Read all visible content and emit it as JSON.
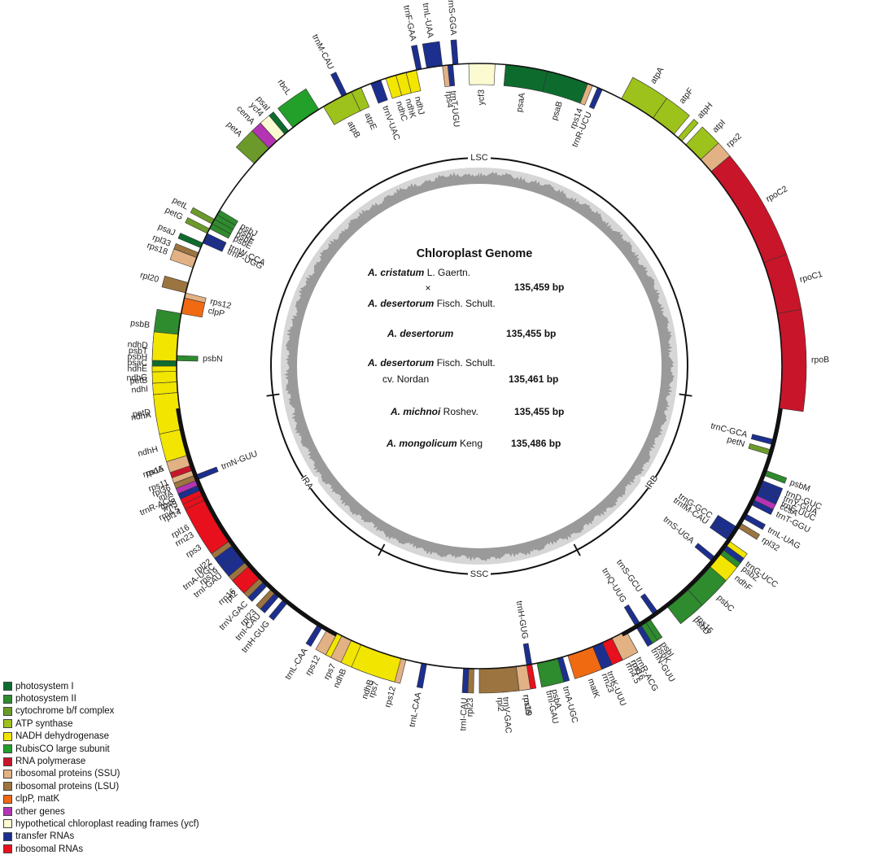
{
  "diagram": {
    "title": "Chloroplast Genome",
    "species": [
      {
        "line1_italic": "A. cristatum",
        "line1_rest": " L. Gaertn.",
        "cross": "×",
        "line2_italic": "A. desertorum",
        "line2_rest": " Fisch. Schult.",
        "size": "135,459 bp"
      },
      {
        "italic": "A. desertorum",
        "rest": "",
        "size": "135,455 bp"
      },
      {
        "italic": "A. desertorum",
        "rest": " Fisch. Schult.",
        "line2": "cv. Nordan",
        "size": "135,461 bp"
      },
      {
        "italic": "A. michnoi",
        "rest": " Roshev.",
        "size": "135,455 bp"
      },
      {
        "italic": "A. mongolicum",
        "rest": " Keng",
        "size": "135,486 bp"
      }
    ],
    "regions": [
      {
        "label": "LSC",
        "angle": 0
      },
      {
        "label": "IRB",
        "angle": 124
      },
      {
        "label": "SSC",
        "angle": 180
      },
      {
        "label": "IRA",
        "angle": 236
      }
    ],
    "boundaries": [
      98,
      152,
      208,
      262
    ],
    "genes": [
      {
        "name": "trnS-GGA",
        "start": -5,
        "end": -4,
        "group": "trna",
        "side": "out"
      },
      {
        "name": "trnL-UAA",
        "start": -10,
        "end": -7,
        "group": "trna",
        "side": "out"
      },
      {
        "name": "trnF-GAA",
        "start": -12,
        "end": -11,
        "group": "trna",
        "side": "out"
      },
      {
        "name": "trnM-CAU",
        "start": -27,
        "end": -26,
        "group": "trna",
        "side": "out"
      },
      {
        "name": "rbcL",
        "start": -38,
        "end": -32,
        "group": "rubisco",
        "side": "out"
      },
      {
        "name": "psaI",
        "start": -40,
        "end": -39,
        "group": "ps1",
        "side": "out"
      },
      {
        "name": "ycf4",
        "start": -42,
        "end": -40,
        "group": "ycf",
        "side": "out"
      },
      {
        "name": "cemA",
        "start": -44,
        "end": -42,
        "group": "other",
        "side": "out"
      },
      {
        "name": "petA",
        "start": -48,
        "end": -44,
        "group": "cyt",
        "side": "out"
      },
      {
        "name": "petL",
        "start": -62,
        "end": -61,
        "group": "cyt",
        "side": "out"
      },
      {
        "name": "petG",
        "start": -64,
        "end": -63,
        "group": "cyt",
        "side": "out"
      },
      {
        "name": "psaJ",
        "start": -67,
        "end": -66,
        "group": "ps1",
        "side": "out"
      },
      {
        "name": "rpl33",
        "start": -69,
        "end": -68,
        "group": "lsu",
        "side": "out"
      },
      {
        "name": "rps18",
        "start": -71,
        "end": -69,
        "group": "ssu",
        "side": "out"
      },
      {
        "name": "rpl20",
        "start": -76,
        "end": -74,
        "group": "lsu",
        "side": "out"
      },
      {
        "name": "psbB",
        "start": -86,
        "end": -80,
        "group": "ps2",
        "side": "out"
      },
      {
        "name": "psbT",
        "start": -88,
        "end": -87,
        "group": "ps2",
        "side": "out"
      },
      {
        "name": "psbH",
        "start": -89,
        "end": -88,
        "group": "ps2",
        "side": "out"
      },
      {
        "name": "petB",
        "start": -95,
        "end": -90,
        "group": "cyt",
        "side": "out"
      },
      {
        "name": "petD",
        "start": -100,
        "end": -96,
        "group": "cyt",
        "side": "out"
      },
      {
        "name": "rpoA",
        "start": -110,
        "end": -106,
        "group": "rnap",
        "side": "out"
      },
      {
        "name": "rps11",
        "start": -111,
        "end": -110,
        "group": "ssu",
        "side": "out"
      },
      {
        "name": "rpl36",
        "start": -112,
        "end": -111,
        "group": "lsu",
        "side": "out"
      },
      {
        "name": "infA",
        "start": -113,
        "end": -112,
        "group": "other",
        "side": "out"
      },
      {
        "name": "rps8",
        "start": -115,
        "end": -113,
        "group": "ssu",
        "side": "out"
      },
      {
        "name": "rpl14",
        "start": -117,
        "end": -115,
        "group": "lsu",
        "side": "out"
      },
      {
        "name": "rpl16",
        "start": -121,
        "end": -117,
        "group": "lsu",
        "side": "out"
      },
      {
        "name": "rps3",
        "start": -125,
        "end": -121,
        "group": "ssu",
        "side": "out"
      },
      {
        "name": "rpl22",
        "start": -127,
        "end": -125,
        "group": "lsu",
        "side": "out"
      },
      {
        "name": "rps19",
        "start": -129,
        "end": -127,
        "group": "ssu",
        "side": "out"
      },
      {
        "name": "rpl2",
        "start": -136,
        "end": -130,
        "group": "lsu",
        "side": "out"
      },
      {
        "name": "rpl23",
        "start": -138,
        "end": -137,
        "group": "lsu",
        "side": "out"
      },
      {
        "name": "trnI-CAU",
        "start": -139,
        "end": -138,
        "group": "trna",
        "side": "out"
      },
      {
        "name": "trnH-GUG",
        "start": -141,
        "end": -140,
        "group": "trna",
        "side": "out"
      },
      {
        "name": "trnL-CAA",
        "start": -149,
        "end": -148,
        "group": "trna",
        "side": "out"
      },
      {
        "name": "ndhB",
        "start": -160,
        "end": -152,
        "group": "ndh",
        "side": "out"
      },
      {
        "name": "rps7",
        "start": -163,
        "end": -161,
        "group": "ssu",
        "side": "out"
      },
      {
        "name": "rps12",
        "start": -166,
        "end": -164,
        "group": "ssu",
        "side": "out"
      },
      {
        "name": "trnV-GAC",
        "start": -185,
        "end": -184,
        "group": "trna",
        "side": "out"
      },
      {
        "name": "rrn16",
        "start": -190,
        "end": -186,
        "group": "rrna",
        "side": "out"
      },
      {
        "name": "trnI-GAU",
        "start": -193,
        "end": -191,
        "group": "trna",
        "side": "out"
      },
      {
        "name": "trnA-UGC",
        "start": -196,
        "end": -194,
        "group": "trna",
        "side": "out"
      },
      {
        "name": "rrn23",
        "start": -206,
        "end": -198,
        "group": "rrna",
        "side": "out"
      },
      {
        "name": "rrn4.5",
        "start": -207,
        "end": -206,
        "group": "rrna",
        "side": "out"
      },
      {
        "name": "rrn5",
        "start": -208,
        "end": -207,
        "group": "rrna",
        "side": "out"
      },
      {
        "name": "trnR-ACG",
        "start": -209,
        "end": -208,
        "group": "trna",
        "side": "out"
      },
      {
        "name": "trnN-GUU",
        "start": -212,
        "end": -211,
        "group": "trna",
        "side": "out"
      },
      {
        "name": "rps15",
        "start": -222,
        "end": -220,
        "group": "ssu",
        "side": "out"
      },
      {
        "name": "ndhF",
        "start": -235,
        "end": -226,
        "group": "ndh",
        "side": "out"
      },
      {
        "name": "rpl32",
        "start": -239,
        "end": -238,
        "group": "lsu",
        "side": "out"
      },
      {
        "name": "trnL-UAG",
        "start": -241,
        "end": -240,
        "group": "trna",
        "side": "out"
      },
      {
        "name": "ccsA",
        "start": -247,
        "end": -243,
        "group": "other",
        "side": "out"
      },
      {
        "name": "psaA",
        "start": 5,
        "end": 13,
        "group": "ps1",
        "side": "in"
      },
      {
        "name": "psaB",
        "start": 13,
        "end": 21,
        "group": "ps1",
        "side": "in"
      },
      {
        "name": "rps14",
        "start": 21,
        "end": 22,
        "group": "ssu",
        "side": "in"
      },
      {
        "name": "trnR-UCU",
        "start": 23,
        "end": 24,
        "group": "trna",
        "side": "in"
      },
      {
        "name": "ycf3",
        "start": -2,
        "end": 3,
        "group": "ycf",
        "side": "in"
      },
      {
        "name": "trnT-UGU",
        "start": -6,
        "end": -5,
        "group": "trna",
        "side": "in"
      },
      {
        "name": "rps4",
        "start": -7,
        "end": -6,
        "group": "ssu",
        "side": "in"
      },
      {
        "name": "ndhJ",
        "start": -14,
        "end": -12,
        "group": "ndh",
        "side": "in"
      },
      {
        "name": "ndhK",
        "start": -16,
        "end": -14,
        "group": "ndh",
        "side": "in"
      },
      {
        "name": "ndhC",
        "start": -18,
        "end": -16,
        "group": "ndh",
        "side": "in"
      },
      {
        "name": "trnV-UAC",
        "start": -21,
        "end": -19,
        "group": "trna",
        "side": "in"
      },
      {
        "name": "atpE",
        "start": -25,
        "end": -23,
        "group": "atp",
        "side": "in"
      },
      {
        "name": "atpB",
        "start": -31,
        "end": -25,
        "group": "atp",
        "side": "in"
      },
      {
        "name": "psbJ",
        "start": -60,
        "end": -59,
        "group": "ps2",
        "side": "in"
      },
      {
        "name": "psbL",
        "start": -61,
        "end": -60,
        "group": "ps2",
        "side": "in"
      },
      {
        "name": "psbF",
        "start": -62,
        "end": -61,
        "group": "ps2",
        "side": "in"
      },
      {
        "name": "psbE",
        "start": -63,
        "end": -62,
        "group": "ps2",
        "side": "in"
      },
      {
        "name": "trnW-CCA",
        "start": -65,
        "end": -64,
        "group": "trna",
        "side": "in"
      },
      {
        "name": "trnP-UGG",
        "start": -66,
        "end": -65,
        "group": "trna",
        "side": "in"
      },
      {
        "name": "rps12",
        "start": -77,
        "end": -76,
        "group": "ssu",
        "side": "in"
      },
      {
        "name": "clpP",
        "start": -80,
        "end": -77,
        "group": "clp",
        "side": "in"
      },
      {
        "name": "psbN",
        "start": -89,
        "end": -88,
        "group": "ps2",
        "side": "in"
      },
      {
        "name": "atpA",
        "start": 28,
        "end": 35,
        "group": "atp",
        "side": "out"
      },
      {
        "name": "atpF",
        "start": 35,
        "end": 40,
        "group": "atp",
        "side": "out"
      },
      {
        "name": "atpH",
        "start": 41,
        "end": 42,
        "group": "atp",
        "side": "out"
      },
      {
        "name": "atpI",
        "start": 43,
        "end": 47,
        "group": "atp",
        "side": "out"
      },
      {
        "name": "rps2",
        "start": 47,
        "end": 50,
        "group": "ssu",
        "side": "out"
      },
      {
        "name": "rpoC2",
        "start": 50,
        "end": 70,
        "group": "rnap",
        "side": "out"
      },
      {
        "name": "rpoC1",
        "start": 70,
        "end": 80,
        "group": "rnap",
        "side": "out"
      },
      {
        "name": "rpoB",
        "start": 80,
        "end": 98,
        "group": "rnap",
        "side": "out"
      },
      {
        "name": "psbM",
        "start": 110,
        "end": 111,
        "group": "ps2",
        "side": "out"
      },
      {
        "name": "trnD-GUC",
        "start": 112,
        "end": 113,
        "group": "trna",
        "side": "out"
      },
      {
        "name": "trnY-GUA",
        "start": 113,
        "end": 114,
        "group": "trna",
        "side": "out"
      },
      {
        "name": "trnE-UUC",
        "start": 114,
        "end": 115,
        "group": "trna",
        "side": "out"
      },
      {
        "name": "trnT-GGU",
        "start": 116,
        "end": 117,
        "group": "trna",
        "side": "out"
      },
      {
        "name": "trnG-UCC",
        "start": 126,
        "end": 127,
        "group": "trna",
        "side": "out"
      },
      {
        "name": "psbZ",
        "start": 127,
        "end": 128,
        "group": "ps2",
        "side": "out"
      },
      {
        "name": "psbC",
        "start": 131,
        "end": 137,
        "group": "ps2",
        "side": "out"
      },
      {
        "name": "psbD",
        "start": 137,
        "end": 142,
        "group": "ps2",
        "side": "out"
      },
      {
        "name": "psbI",
        "start": 146,
        "end": 147,
        "group": "ps2",
        "side": "out"
      },
      {
        "name": "psbK",
        "start": 147,
        "end": 148,
        "group": "ps2",
        "side": "out"
      },
      {
        "name": "rps16",
        "start": 151,
        "end": 154,
        "group": "ssu",
        "side": "out"
      },
      {
        "name": "trnK-UUU",
        "start": 156,
        "end": 158,
        "group": "trna",
        "side": "out"
      },
      {
        "name": "matK",
        "start": 158,
        "end": 163,
        "group": "clp",
        "side": "out"
      },
      {
        "name": "psbA",
        "start": 165,
        "end": 169,
        "group": "ps2",
        "side": "out"
      },
      {
        "name": "rps19",
        "start": 171,
        "end": 173,
        "group": "ssu",
        "side": "out"
      },
      {
        "name": "rpl2",
        "start": 173,
        "end": 180,
        "group": "lsu",
        "side": "out"
      },
      {
        "name": "rpl23",
        "start": 181,
        "end": 182,
        "group": "lsu",
        "side": "out"
      },
      {
        "name": "trnI-CAU",
        "start": 182,
        "end": 183,
        "group": "trna",
        "side": "out"
      },
      {
        "name": "trnL-CAA",
        "start": 190,
        "end": 191,
        "group": "trna",
        "side": "out"
      },
      {
        "name": "ndhB",
        "start": 195,
        "end": 203,
        "group": "ndh",
        "side": "out"
      },
      {
        "name": "rps7",
        "start": 205,
        "end": 207,
        "group": "ssu",
        "side": "out"
      },
      {
        "name": "rps12",
        "start": 208,
        "end": 210,
        "group": "ssu",
        "side": "out"
      },
      {
        "name": "trnV-GAC",
        "start": 224,
        "end": 225,
        "group": "trna",
        "side": "out"
      },
      {
        "name": "rrn16",
        "start": 226,
        "end": 229,
        "group": "rrna",
        "side": "out"
      },
      {
        "name": "trnI-GAU",
        "start": 230,
        "end": 232,
        "group": "trna",
        "side": "out"
      },
      {
        "name": "trnA-UGC",
        "start": 232,
        "end": 234,
        "group": "trna",
        "side": "out"
      },
      {
        "name": "rrn23",
        "start": 235,
        "end": 244,
        "group": "rrna",
        "side": "out"
      },
      {
        "name": "rrn4.5",
        "start": 244,
        "end": 245,
        "group": "rrna",
        "side": "out"
      },
      {
        "name": "rrn5",
        "start": 245,
        "end": 246,
        "group": "rrna",
        "side": "out"
      },
      {
        "name": "trnR-ACG",
        "start": 246,
        "end": 247,
        "group": "trna",
        "side": "out"
      },
      {
        "name": "trnN-GUU",
        "start": 248,
        "end": 249,
        "group": "trna",
        "side": "in"
      },
      {
        "name": "rps15",
        "start": 251,
        "end": 253,
        "group": "ssu",
        "side": "out"
      },
      {
        "name": "ndhH",
        "start": 253,
        "end": 258,
        "group": "ndh",
        "side": "out"
      },
      {
        "name": "ndhA",
        "start": 258,
        "end": 265,
        "group": "ndh",
        "side": "out"
      },
      {
        "name": "ndhI",
        "start": 265,
        "end": 267,
        "group": "ndh",
        "side": "out"
      },
      {
        "name": "ndhG",
        "start": 267,
        "end": 269,
        "group": "ndh",
        "side": "out"
      },
      {
        "name": "ndhE",
        "start": 269,
        "end": 270,
        "group": "ndh",
        "side": "out"
      },
      {
        "name": "psaC",
        "start": 270,
        "end": 271,
        "group": "ps1",
        "side": "out"
      },
      {
        "name": "ndhD",
        "start": 271,
        "end": 276,
        "group": "ndh",
        "side": "out"
      },
      {
        "name": "trnC-GCA",
        "start": 104,
        "end": 105,
        "group": "trna",
        "side": "in"
      },
      {
        "name": "petN",
        "start": 106,
        "end": 107,
        "group": "cyt",
        "side": "in"
      },
      {
        "name": "trnG-GCC",
        "start": 122,
        "end": 124,
        "group": "trna",
        "side": "in"
      },
      {
        "name": "trnfM-CAU",
        "start": 124,
        "end": 125,
        "group": "trna",
        "side": "in"
      },
      {
        "name": "trnS-UGA",
        "start": 129,
        "end": 130,
        "group": "trna",
        "side": "in"
      },
      {
        "name": "trnS-GCU",
        "start": 144,
        "end": 145,
        "group": "trna",
        "side": "in"
      },
      {
        "name": "trnQ-UUG",
        "start": 148,
        "end": 149,
        "group": "trna",
        "side": "in"
      },
      {
        "name": "trnH-GUG",
        "start": 170,
        "end": 171,
        "group": "trna",
        "side": "in"
      }
    ],
    "groups": {
      "ps1": {
        "color": "#0e6b2e"
      },
      "ps2": {
        "color": "#2e8b2e"
      },
      "cyt": {
        "color": "#6b9a2a"
      },
      "atp": {
        "color": "#9dc21c"
      },
      "ndh": {
        "color": "#f2e500"
      },
      "rubisco": {
        "color": "#22a02a"
      },
      "rnap": {
        "color": "#c8152a"
      },
      "ssu": {
        "color": "#e2b184"
      },
      "lsu": {
        "color": "#9c7440"
      },
      "clp": {
        "color": "#f06a12"
      },
      "other": {
        "color": "#b434b4"
      },
      "ycf": {
        "color": "#fbfad0"
      },
      "trna": {
        "color": "#1c2f8e"
      },
      "rrna": {
        "color": "#e8101c"
      }
    }
  },
  "legend": [
    {
      "label": "photosystem I",
      "color": "#0e6b2e"
    },
    {
      "label": "photosystem II",
      "color": "#2e8b2e"
    },
    {
      "label": "cytochrome b/f complex",
      "color": "#6b9a2a"
    },
    {
      "label": "ATP synthase",
      "color": "#9dc21c"
    },
    {
      "label": "NADH dehydrogenase",
      "color": "#f2e500"
    },
    {
      "label": "RubisCO large subunit",
      "color": "#22a02a"
    },
    {
      "label": "RNA polymerase",
      "color": "#c8152a"
    },
    {
      "label": "ribosomal proteins (SSU)",
      "color": "#e2b184"
    },
    {
      "label": "ribosomal proteins (LSU)",
      "color": "#9c7440"
    },
    {
      "label": "clpP, matK",
      "color": "#f06a12"
    },
    {
      "label": "other genes",
      "color": "#b434b4"
    },
    {
      "label": "hypothetical chloroplast reading frames (ycf)",
      "color": "#fbfad0"
    },
    {
      "label": "transfer RNAs",
      "color": "#1c2f8e"
    },
    {
      "label": "ribosomal RNAs",
      "color": "#e8101c"
    }
  ]
}
